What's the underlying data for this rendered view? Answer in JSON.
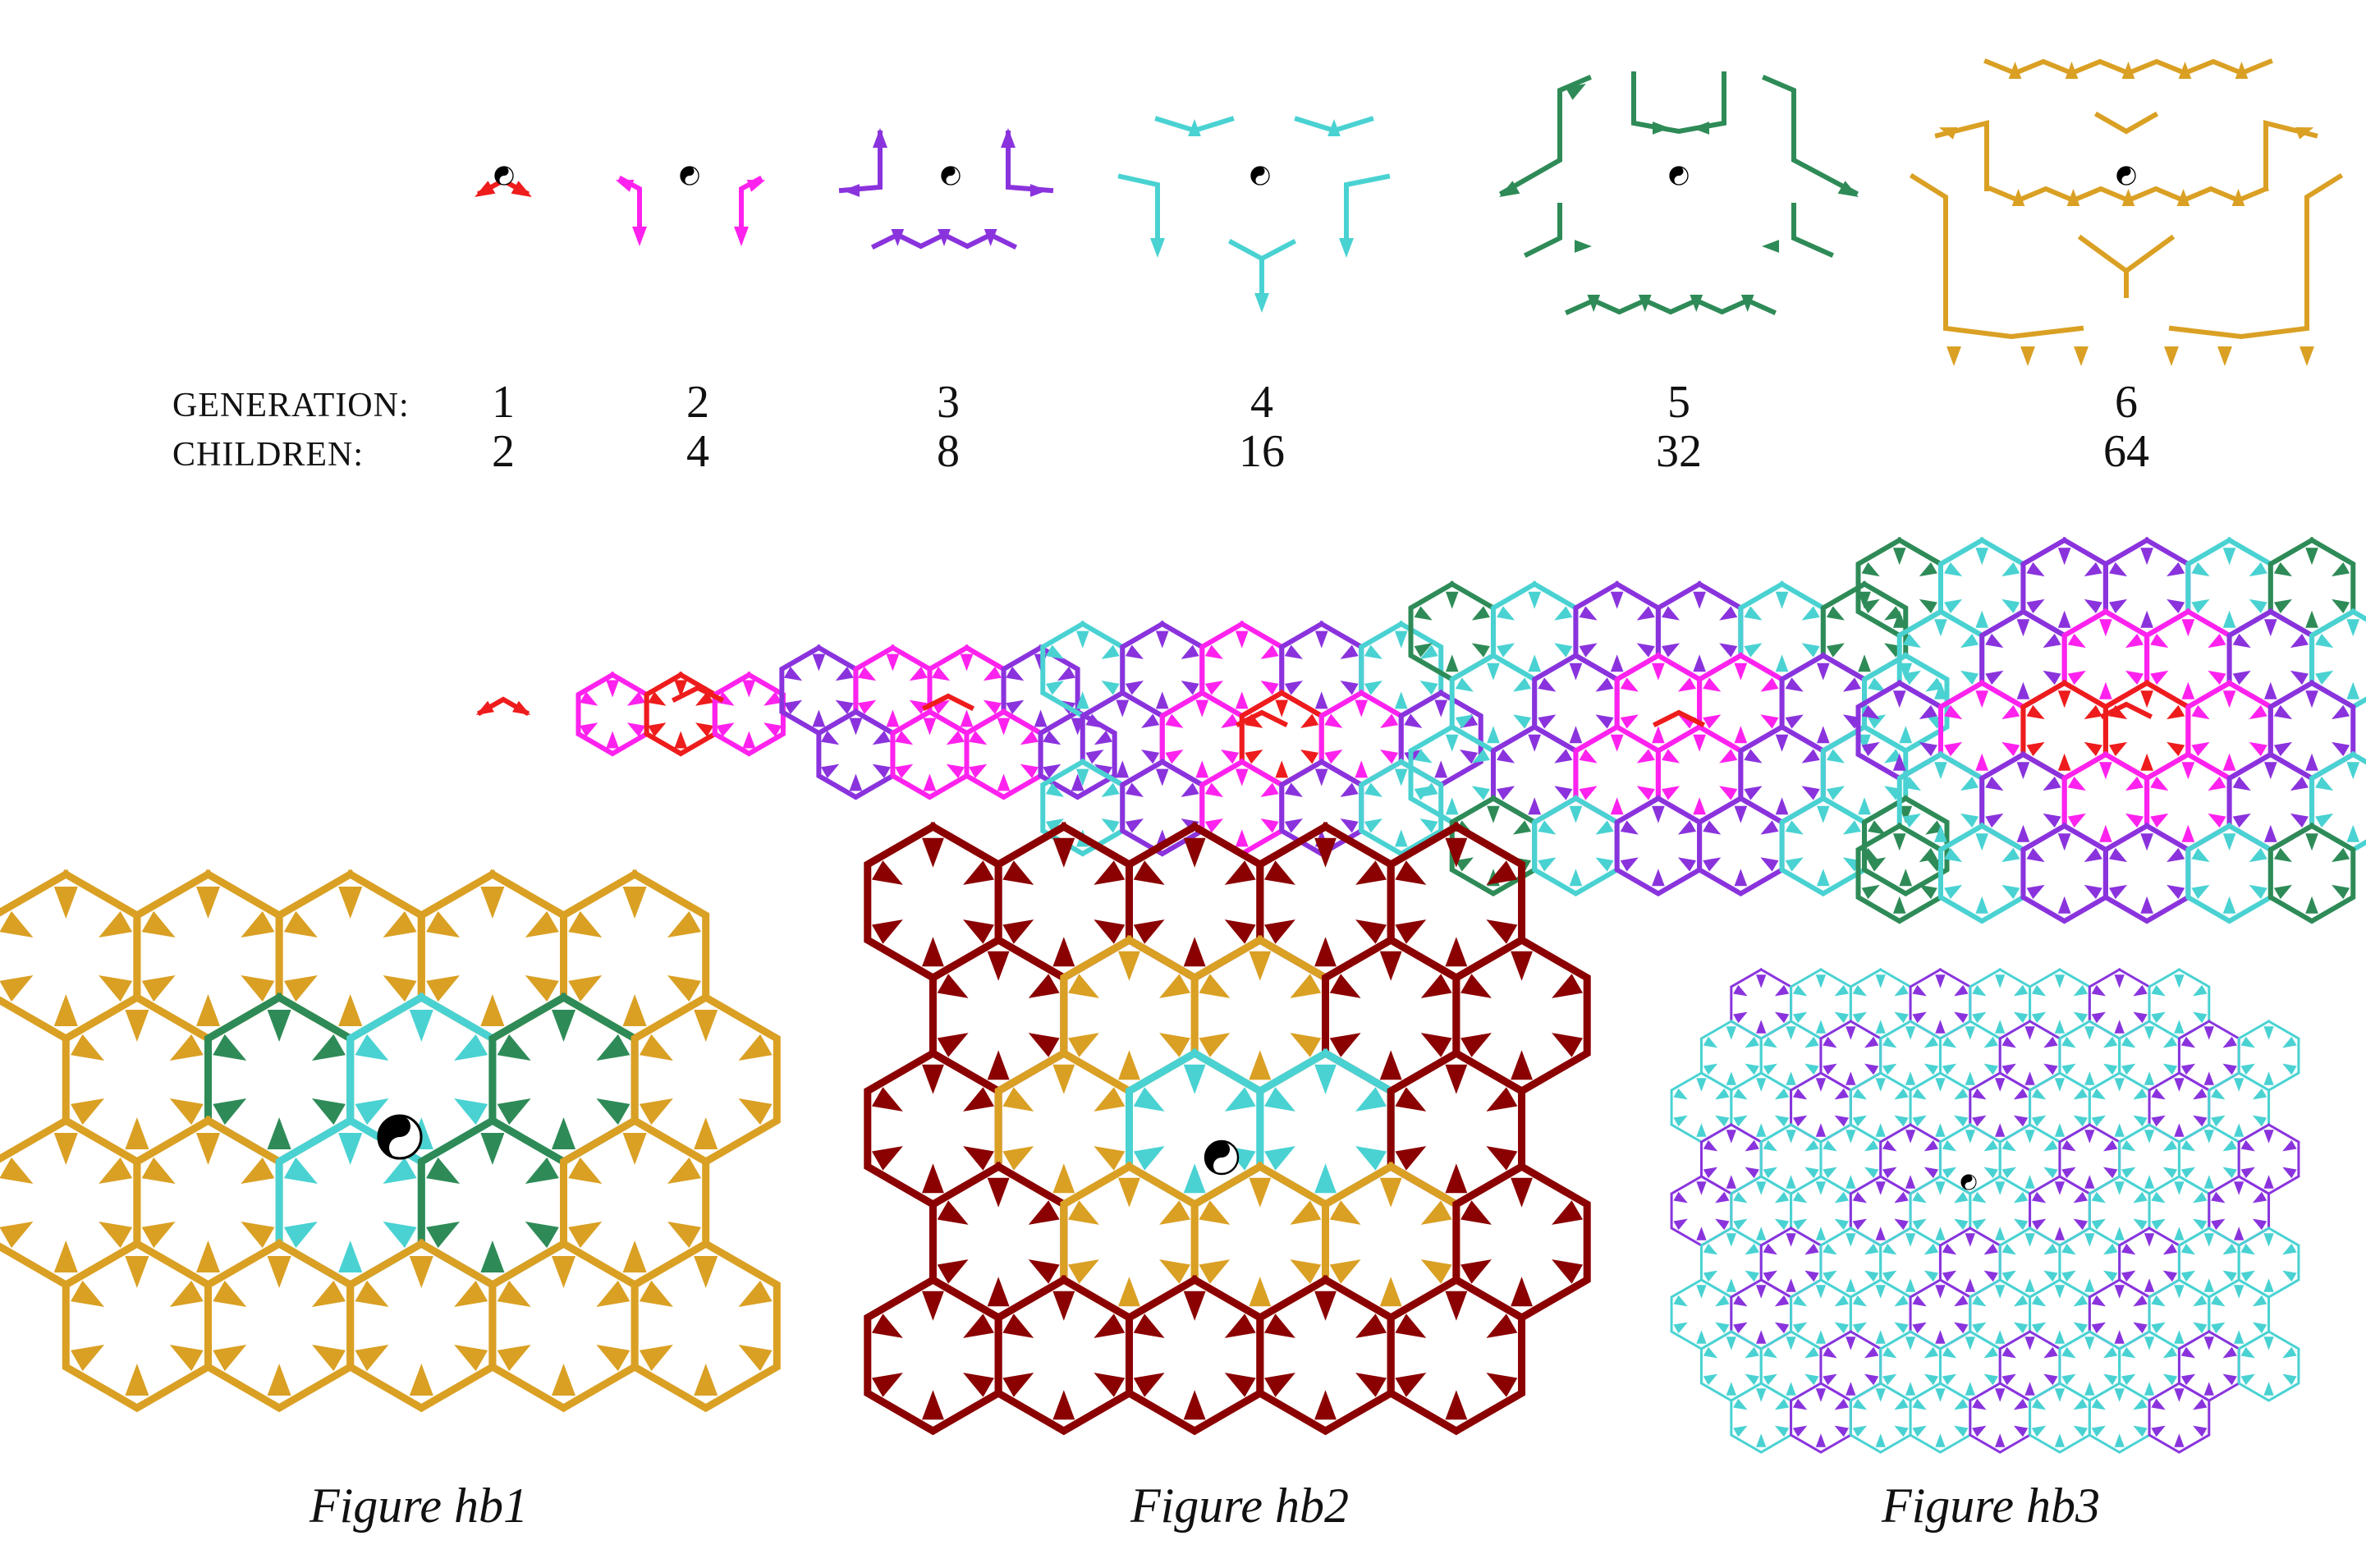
{
  "labels": {
    "generation": "GENERATION:",
    "children": "CHILDREN:"
  },
  "generations": [
    {
      "generation": "1",
      "children": "2",
      "color": "#ee1c1c"
    },
    {
      "generation": "2",
      "children": "4",
      "color": "#ff22ee"
    },
    {
      "generation": "3",
      "children": "8",
      "color": "#8a33dd"
    },
    {
      "generation": "4",
      "children": "16",
      "color": "#4ad2d2"
    },
    {
      "generation": "5",
      "children": "32",
      "color": "#2e8b57"
    },
    {
      "generation": "6",
      "children": "64",
      "color": "#daa024"
    }
  ],
  "extra_colors": {
    "hb2_outer": "#8b0000",
    "yin_yang": "#000000"
  },
  "figures": [
    {
      "caption": "Figure hb1"
    },
    {
      "caption": "Figure hb2"
    },
    {
      "caption": "Figure hb3"
    }
  ],
  "icons": [
    "yin-yang-icon"
  ]
}
